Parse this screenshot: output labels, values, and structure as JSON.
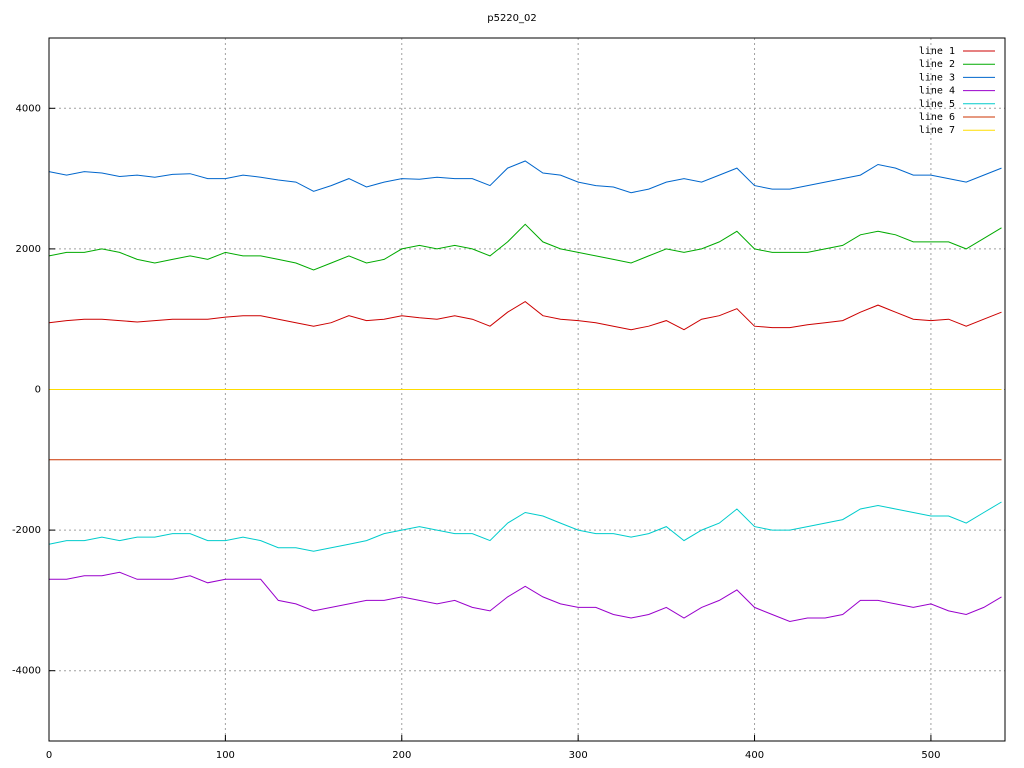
{
  "chart_data": {
    "type": "line",
    "title": "p5220_02",
    "x": [
      0,
      10,
      20,
      30,
      40,
      50,
      60,
      70,
      80,
      90,
      100,
      110,
      120,
      130,
      140,
      150,
      160,
      170,
      180,
      190,
      200,
      210,
      220,
      230,
      240,
      250,
      260,
      270,
      280,
      290,
      300,
      310,
      320,
      330,
      340,
      350,
      360,
      370,
      380,
      390,
      400,
      410,
      420,
      430,
      440,
      450,
      460,
      470,
      480,
      490,
      500,
      510,
      520,
      530,
      540
    ],
    "xlim": [
      0,
      542
    ],
    "xticks": [
      0,
      100,
      200,
      300,
      400,
      500
    ],
    "ylim": [
      -5000,
      5000
    ],
    "yticks": [
      -4000,
      -2000,
      0,
      2000,
      4000
    ],
    "grid": true,
    "legend": "top-right",
    "series": [
      {
        "name": "line 1",
        "color": "#cc0000",
        "values": [
          950,
          980,
          1000,
          1000,
          980,
          960,
          980,
          1000,
          1000,
          1000,
          1030,
          1050,
          1050,
          1000,
          950,
          900,
          950,
          1050,
          980,
          1000,
          1050,
          1020,
          1000,
          1050,
          1000,
          900,
          1100,
          1250,
          1050,
          1000,
          980,
          950,
          900,
          850,
          900,
          980,
          850,
          1000,
          1050,
          1150,
          900,
          880,
          880,
          920,
          950,
          980,
          1100,
          1200,
          1100,
          1000,
          980,
          1000,
          900,
          1000,
          1100
        ]
      },
      {
        "name": "line 2",
        "color": "#00aa00",
        "values": [
          1900,
          1950,
          1950,
          2000,
          1950,
          1850,
          1800,
          1850,
          1900,
          1850,
          1950,
          1900,
          1900,
          1850,
          1800,
          1700,
          1800,
          1900,
          1800,
          1850,
          2000,
          2050,
          2000,
          2050,
          2000,
          1900,
          2100,
          2350,
          2100,
          2000,
          1950,
          1900,
          1850,
          1800,
          1900,
          2000,
          1950,
          2000,
          2100,
          2250,
          2000,
          1950,
          1950,
          1950,
          2000,
          2050,
          2200,
          2250,
          2200,
          2100,
          2100,
          2100,
          2000,
          2150,
          2300
        ]
      },
      {
        "name": "line 3",
        "color": "#0066cc",
        "values": [
          3100,
          3050,
          3100,
          3080,
          3030,
          3050,
          3020,
          3060,
          3070,
          3000,
          3000,
          3050,
          3020,
          2980,
          2950,
          2820,
          2900,
          3000,
          2880,
          2950,
          3000,
          2990,
          3020,
          3000,
          3000,
          2900,
          3150,
          3250,
          3080,
          3050,
          2950,
          2900,
          2880,
          2800,
          2850,
          2950,
          3000,
          2950,
          3050,
          3150,
          2900,
          2850,
          2850,
          2900,
          2950,
          3000,
          3050,
          3200,
          3150,
          3050,
          3050,
          3000,
          2950,
          3050,
          3150
        ]
      },
      {
        "name": "line 4",
        "color": "#9900cc",
        "values": [
          -2700,
          -2700,
          -2650,
          -2650,
          -2600,
          -2700,
          -2700,
          -2700,
          -2650,
          -2750,
          -2700,
          -2700,
          -2700,
          -3000,
          -3050,
          -3150,
          -3100,
          -3050,
          -3000,
          -3000,
          -2950,
          -3000,
          -3050,
          -3000,
          -3100,
          -3150,
          -2950,
          -2800,
          -2950,
          -3050,
          -3100,
          -3100,
          -3200,
          -3250,
          -3200,
          -3100,
          -3250,
          -3100,
          -3000,
          -2850,
          -3100,
          -3200,
          -3300,
          -3250,
          -3250,
          -3200,
          -3000,
          -3000,
          -3050,
          -3100,
          -3050,
          -3150,
          -3200,
          -3100,
          -2950
        ]
      },
      {
        "name": "line 5",
        "color": "#00cccc",
        "values": [
          -2200,
          -2150,
          -2150,
          -2100,
          -2150,
          -2100,
          -2100,
          -2050,
          -2050,
          -2150,
          -2150,
          -2100,
          -2150,
          -2250,
          -2250,
          -2300,
          -2250,
          -2200,
          -2150,
          -2050,
          -2000,
          -1950,
          -2000,
          -2050,
          -2050,
          -2150,
          -1900,
          -1750,
          -1800,
          -1900,
          -2000,
          -2050,
          -2050,
          -2100,
          -2050,
          -1950,
          -2150,
          -2000,
          -1900,
          -1700,
          -1950,
          -2000,
          -2000,
          -1950,
          -1900,
          -1850,
          -1700,
          -1650,
          -1700,
          -1750,
          -1800,
          -1800,
          -1900,
          -1750,
          -1600
        ]
      },
      {
        "name": "line 6",
        "color": "#cc3300",
        "values": [
          -1000,
          -1000,
          -1000,
          -1000,
          -1000,
          -1000,
          -1000,
          -1000,
          -1000,
          -1000,
          -1000,
          -1000,
          -1000,
          -1000,
          -1000,
          -1000,
          -1000,
          -1000,
          -1000,
          -1000,
          -1000,
          -1000,
          -1000,
          -1000,
          -1000,
          -1000,
          -1000,
          -1000,
          -1000,
          -1000,
          -1000,
          -1000,
          -1000,
          -1000,
          -1000,
          -1000,
          -1000,
          -1000,
          -1000,
          -1000,
          -1000,
          -1000,
          -1000,
          -1000,
          -1000,
          -1000,
          -1000,
          -1000,
          -1000,
          -1000,
          -1000,
          -1000,
          -1000,
          -1000,
          -1000
        ]
      },
      {
        "name": "line 7",
        "color": "#ffdd00",
        "values": [
          0,
          0,
          0,
          0,
          0,
          0,
          0,
          0,
          0,
          0,
          0,
          0,
          0,
          0,
          0,
          0,
          0,
          0,
          0,
          0,
          0,
          0,
          0,
          0,
          0,
          0,
          0,
          0,
          0,
          0,
          0,
          0,
          0,
          0,
          0,
          0,
          0,
          0,
          0,
          0,
          0,
          0,
          0,
          0,
          0,
          0,
          0,
          0,
          0,
          0,
          0,
          0,
          0,
          0,
          0
        ]
      }
    ]
  }
}
